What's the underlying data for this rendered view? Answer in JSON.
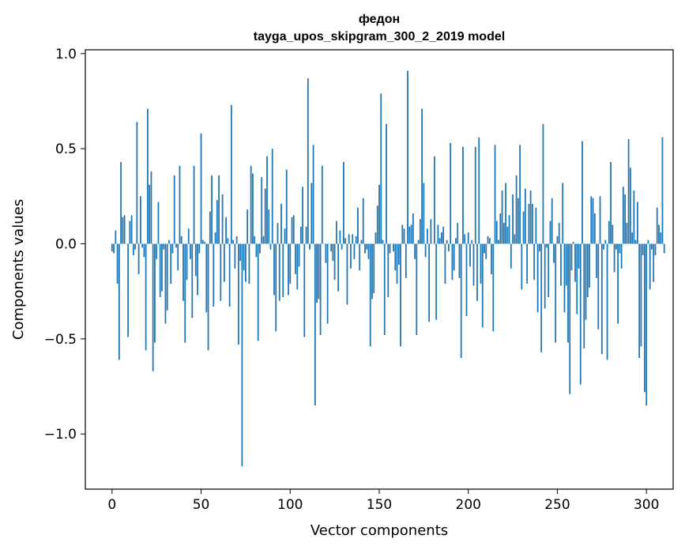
{
  "chart_data": {
    "type": "bar",
    "title_line1": "федон",
    "title_line2": "tayga_upos_skipgram_300_2_2019 model",
    "xlabel": "Vector components",
    "ylabel": "Components values",
    "xlim": [
      -15,
      315
    ],
    "ylim": [
      -1.29,
      1.02
    ],
    "xticks": [
      0,
      50,
      100,
      150,
      200,
      250,
      300
    ],
    "xtick_labels": [
      "0",
      "50",
      "100",
      "150",
      "200",
      "250",
      "300"
    ],
    "yticks": [
      -1.0,
      -0.5,
      0.0,
      0.5,
      1.0
    ],
    "ytick_labels": [
      "−1.0",
      "−0.5",
      "0.0",
      "0.5",
      "1.0"
    ],
    "bar_color": "#1f77b4",
    "grid": false,
    "values": [
      -0.04,
      -0.05,
      0.07,
      -0.21,
      -0.61,
      0.43,
      0.14,
      0.15,
      0.0,
      -0.49,
      0.12,
      0.15,
      -0.06,
      -0.03,
      0.64,
      -0.16,
      0.25,
      -0.02,
      -0.07,
      -0.56,
      0.71,
      0.31,
      0.38,
      -0.67,
      -0.52,
      -0.08,
      0.22,
      -0.28,
      -0.25,
      -0.03,
      -0.42,
      -0.35,
      0.02,
      -0.21,
      -0.05,
      0.36,
      -0.02,
      -0.14,
      0.41,
      0.04,
      -0.3,
      -0.52,
      -0.19,
      0.08,
      -0.08,
      -0.39,
      0.41,
      -0.17,
      -0.27,
      -0.05,
      0.58,
      0.02,
      0.01,
      -0.36,
      -0.56,
      0.17,
      0.36,
      -0.33,
      0.06,
      0.23,
      0.36,
      -0.3,
      0.26,
      -0.2,
      0.14,
      0.03,
      -0.33,
      0.73,
      0.02,
      -0.13,
      0.04,
      -0.53,
      -0.09,
      -1.17,
      -0.14,
      -0.2,
      0.18,
      -0.21,
      0.41,
      0.37,
      0.04,
      -0.07,
      -0.51,
      -0.05,
      0.35,
      0.04,
      0.29,
      0.46,
      0.18,
      -0.03,
      0.5,
      -0.27,
      -0.46,
      0.11,
      -0.3,
      0.21,
      -0.28,
      0.08,
      0.39,
      -0.27,
      -0.21,
      0.14,
      0.15,
      -0.16,
      -0.24,
      -0.12,
      0.09,
      0.3,
      -0.49,
      0.09,
      0.87,
      -0.03,
      0.32,
      0.52,
      -0.85,
      -0.31,
      -0.29,
      -0.48,
      0.41,
      0.0,
      -0.1,
      -0.42,
      0.0,
      -0.04,
      -0.09,
      -0.19,
      0.12,
      -0.25,
      0.07,
      -0.03,
      0.43,
      0.03,
      -0.32,
      0.05,
      -0.13,
      0.05,
      -0.08,
      0.04,
      0.19,
      -0.14,
      0.02,
      0.24,
      -0.05,
      -0.03,
      -0.08,
      -0.54,
      -0.29,
      -0.26,
      0.06,
      0.2,
      0.31,
      0.79,
      0.02,
      -0.48,
      0.63,
      -0.28,
      -0.05,
      0.0,
      -0.04,
      -0.14,
      -0.21,
      -0.11,
      -0.54,
      0.1,
      0.08,
      -0.18,
      0.91,
      0.09,
      0.1,
      0.16,
      -0.08,
      -0.48,
      0.02,
      0.13,
      0.71,
      0.32,
      -0.07,
      0.08,
      -0.41,
      0.13,
      0.0,
      0.46,
      -0.4,
      0.1,
      0.03,
      0.06,
      0.09,
      -0.21,
      0.02,
      -0.04,
      0.53,
      -0.19,
      -0.14,
      0.03,
      0.11,
      -0.18,
      -0.6,
      0.51,
      0.05,
      -0.38,
      0.06,
      -0.12,
      0.02,
      -0.22,
      0.51,
      -0.3,
      0.56,
      -0.21,
      -0.44,
      -0.05,
      -0.08,
      0.04,
      0.03,
      -0.16,
      -0.46,
      0.52,
      0.12,
      0.02,
      0.16,
      0.28,
      0.11,
      0.32,
      0.09,
      0.15,
      -0.13,
      0.26,
      0.05,
      0.36,
      0.24,
      0.52,
      -0.24,
      0.17,
      0.29,
      -0.21,
      0.21,
      0.28,
      0.21,
      -0.19,
      0.19,
      -0.36,
      -0.04,
      -0.57,
      0.63,
      -0.34,
      -0.02,
      -0.28,
      0.12,
      0.24,
      -0.1,
      -0.52,
      0.04,
      0.11,
      -0.22,
      0.32,
      -0.36,
      -0.22,
      -0.52,
      -0.79,
      -0.14,
      0.01,
      -0.2,
      -0.37,
      -0.13,
      -0.74,
      0.54,
      -0.55,
      -0.4,
      -0.28,
      -0.23,
      0.25,
      0.24,
      0.16,
      -0.18,
      -0.45,
      0.25,
      -0.58,
      -0.03,
      0.02,
      -0.61,
      0.12,
      0.43,
      0.1,
      -0.15,
      -0.03,
      -0.42,
      -0.05,
      -0.13,
      0.3,
      0.26,
      0.11,
      0.55,
      0.4,
      0.06,
      0.28,
      0.02,
      0.22,
      -0.6,
      -0.54,
      -0.06,
      -0.78,
      -0.85,
      0.02,
      -0.24,
      -0.03,
      -0.2,
      -0.06,
      0.19,
      0.1,
      0.06,
      0.56,
      -0.05
    ]
  }
}
